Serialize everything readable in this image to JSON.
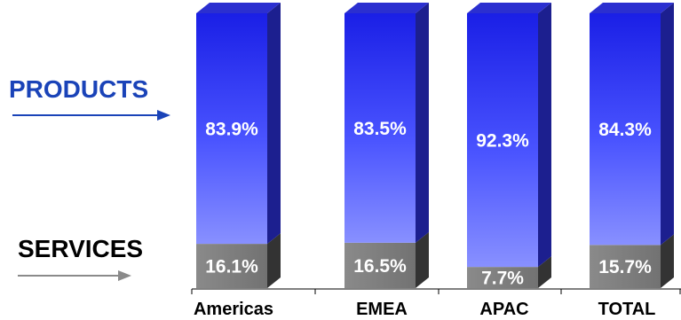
{
  "colors": {
    "products": "#5f66ff",
    "products_dark": "#1c1f8f",
    "services": "#7a7a7a",
    "services_dark": "#333333",
    "products_label": "#1a43b8",
    "services_label": "#000000",
    "arrow_products": "#1a43b8",
    "arrow_services": "#8a8a8a"
  },
  "legend": {
    "products": "PRODUCTS",
    "services": "SERVICES"
  },
  "chart_data": {
    "type": "bar",
    "stacked": true,
    "percent_stacked": true,
    "categories": [
      "Americas",
      "EMEA",
      "APAC",
      "TOTAL"
    ],
    "series": [
      {
        "name": "SERVICES",
        "values": [
          16.1,
          16.5,
          7.7,
          15.7
        ],
        "labels": [
          "16.1%",
          "16.5%",
          "7.7%",
          "15.7%"
        ]
      },
      {
        "name": "PRODUCTS",
        "values": [
          83.9,
          83.5,
          92.3,
          84.3
        ],
        "labels": [
          "83.9%",
          "83.5%",
          "92.3%",
          "84.3%"
        ]
      }
    ],
    "title": "",
    "xlabel": "",
    "ylabel": "",
    "ylim": [
      0,
      100
    ],
    "grid": false,
    "legend_placement": "left"
  }
}
